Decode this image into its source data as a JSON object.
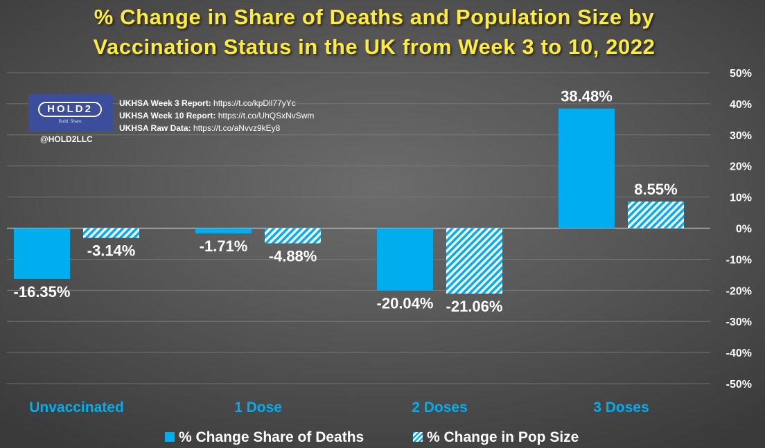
{
  "chart_data": {
    "type": "bar",
    "title_lines": [
      "% Change in Share of Deaths and Population Size by",
      "Vaccination Status in the UK from Week 3 to 10, 2022"
    ],
    "categories": [
      "Unvaccinated",
      "1 Dose",
      "2 Doses",
      "3 Doses"
    ],
    "series": [
      {
        "name": "% Change Share of Deaths",
        "pattern": "solid",
        "values": [
          -16.35,
          -1.71,
          -20.04,
          38.48
        ],
        "labels": [
          "-16.35%",
          "-1.71%",
          "-20.04%",
          "38.48%"
        ]
      },
      {
        "name": "% Change in Pop Size",
        "pattern": "hatched",
        "values": [
          -3.14,
          -4.88,
          -21.06,
          8.55
        ],
        "labels": [
          "-3.14%",
          "-4.88%",
          "-21.06%",
          "8.55%"
        ]
      }
    ],
    "ylim": [
      -50,
      50
    ],
    "yticks": [
      50,
      40,
      30,
      20,
      10,
      0,
      -10,
      -20,
      -30,
      -40,
      -50
    ],
    "ytick_labels": [
      "50%",
      "40%",
      "30%",
      "20%",
      "10%",
      "0%",
      "-10%",
      "-20%",
      "-30%",
      "-40%",
      "-50%"
    ],
    "yaxis_side": "right",
    "grid": true,
    "legend_position": "bottom"
  },
  "colors": {
    "bar": "#00aeef",
    "hatch_light": "#ffffff",
    "title": "#ffeb3b",
    "category_label": "#00aeef",
    "text": "#ffffff",
    "gridline": "#7d7d7d",
    "logo_bg": "#3b4d9b"
  },
  "logo": {
    "brand": "HOLD2",
    "tagline": "Build. Share.",
    "handle": "@HOLD2LLC"
  },
  "sources": [
    {
      "label": "UKHSA Week 3 Report:",
      "url": "https://t.co/kpDll77yYc"
    },
    {
      "label": "UKHSA Week 10 Report:",
      "url": "https://t.co/UhQSxNvSwm"
    },
    {
      "label": "UKHSA Raw Data:",
      "url": "https://t.co/aNvvz9kEy8"
    }
  ]
}
